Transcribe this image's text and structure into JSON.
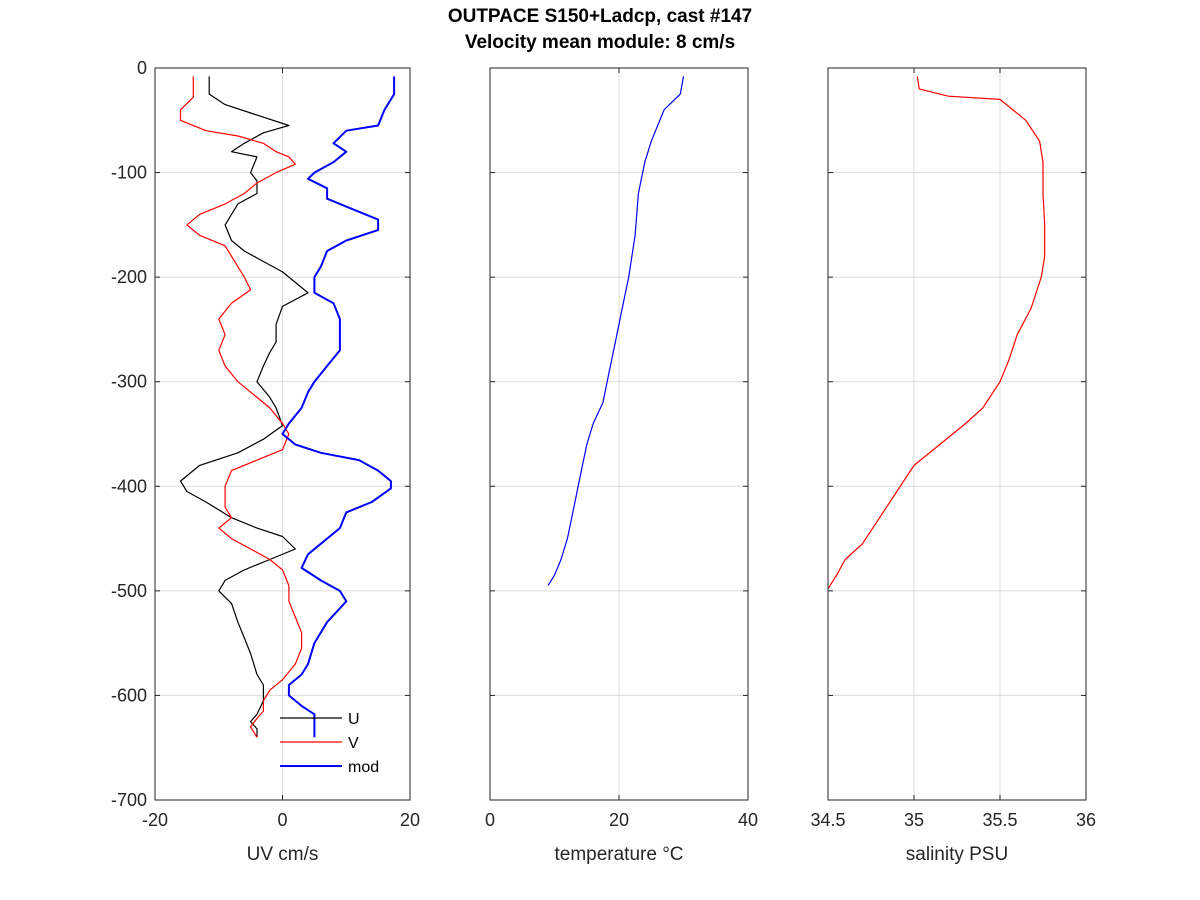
{
  "title_line1": "OUTPACE S150+Ladcp, cast #147",
  "title_line2": "Velocity mean module:  8 cm/s",
  "chart_data": [
    {
      "type": "line",
      "xlabel": "UV cm/s",
      "ylabel": "",
      "xlim": [
        -20,
        20
      ],
      "ylim": [
        -700,
        0
      ],
      "xticks": [
        -20,
        0,
        20
      ],
      "yticks": [
        0,
        -100,
        -200,
        -300,
        -400,
        -500,
        -600,
        -700
      ],
      "grid": true,
      "legend_position": "bottom-right",
      "series": [
        {
          "name": "U",
          "color": "#000000",
          "points": [
            [
              -11.5,
              -8
            ],
            [
              -11.5,
              -25
            ],
            [
              -9,
              -35
            ],
            [
              -4,
              -45
            ],
            [
              1,
              -55
            ],
            [
              -3,
              -62
            ],
            [
              -6,
              -72
            ],
            [
              -8,
              -80
            ],
            [
              -4,
              -85
            ],
            [
              -5,
              -100
            ],
            [
              -4,
              -108
            ],
            [
              -4,
              -120
            ],
            [
              -7,
              -130
            ],
            [
              -8,
              -140
            ],
            [
              -9,
              -150
            ],
            [
              -8,
              -165
            ],
            [
              -6,
              -175
            ],
            [
              -3,
              -185
            ],
            [
              0,
              -195
            ],
            [
              2,
              -205
            ],
            [
              4,
              -215
            ],
            [
              0,
              -228
            ],
            [
              -1,
              -245
            ],
            [
              -1,
              -262
            ],
            [
              -2,
              -272
            ],
            [
              -3,
              -285
            ],
            [
              -4,
              -300
            ],
            [
              -2,
              -315
            ],
            [
              -1,
              -325
            ],
            [
              0,
              -342
            ],
            [
              -3,
              -355
            ],
            [
              -7,
              -368
            ],
            [
              -13,
              -380
            ],
            [
              -16,
              -395
            ],
            [
              -15,
              -405
            ],
            [
              -12,
              -415
            ],
            [
              -8,
              -430
            ],
            [
              -4,
              -440
            ],
            [
              0,
              -448
            ],
            [
              2,
              -460
            ],
            [
              -2,
              -470
            ],
            [
              -6,
              -480
            ],
            [
              -9,
              -490
            ],
            [
              -10,
              -500
            ],
            [
              -8,
              -512
            ],
            [
              -7,
              -530
            ],
            [
              -6,
              -545
            ],
            [
              -5,
              -560
            ],
            [
              -4,
              -580
            ],
            [
              -3,
              -590
            ],
            [
              -3,
              -605
            ],
            [
              -4,
              -618
            ],
            [
              -5,
              -625
            ],
            [
              -4,
              -632
            ],
            [
              -4,
              -640
            ]
          ]
        },
        {
          "name": "V",
          "color": "#ff0000",
          "points": [
            [
              -14,
              -8
            ],
            [
              -14,
              -28
            ],
            [
              -16,
              -40
            ],
            [
              -16,
              -50
            ],
            [
              -12,
              -60
            ],
            [
              -7,
              -65
            ],
            [
              -3,
              -72
            ],
            [
              -1,
              -80
            ],
            [
              1,
              -85
            ],
            [
              2,
              -92
            ],
            [
              -1,
              -100
            ],
            [
              -4,
              -110
            ],
            [
              -6,
              -120
            ],
            [
              -9,
              -130
            ],
            [
              -13,
              -140
            ],
            [
              -15,
              -150
            ],
            [
              -13,
              -160
            ],
            [
              -9,
              -170
            ],
            [
              -7,
              -190
            ],
            [
              -6,
              -200
            ],
            [
              -5,
              -212
            ],
            [
              -8,
              -225
            ],
            [
              -10,
              -240
            ],
            [
              -9,
              -255
            ],
            [
              -10,
              -270
            ],
            [
              -9,
              -285
            ],
            [
              -7,
              -300
            ],
            [
              -4,
              -315
            ],
            [
              -2,
              -325
            ],
            [
              0,
              -340
            ],
            [
              1,
              -350
            ],
            [
              0,
              -365
            ],
            [
              -4,
              -375
            ],
            [
              -8,
              -385
            ],
            [
              -9,
              -400
            ],
            [
              -9,
              -420
            ],
            [
              -8,
              -430
            ],
            [
              -10,
              -440
            ],
            [
              -8,
              -450
            ],
            [
              -5,
              -460
            ],
            [
              -2,
              -470
            ],
            [
              0,
              -480
            ],
            [
              1,
              -495
            ],
            [
              1,
              -510
            ],
            [
              2,
              -525
            ],
            [
              3,
              -540
            ],
            [
              3,
              -555
            ],
            [
              2,
              -570
            ],
            [
              0,
              -585
            ],
            [
              -2,
              -595
            ],
            [
              -3,
              -605
            ],
            [
              -3,
              -615
            ],
            [
              -4,
              -622
            ],
            [
              -5,
              -630
            ],
            [
              -4,
              -640
            ]
          ]
        },
        {
          "name": "mod",
          "color": "#0000ff",
          "points": [
            [
              17.5,
              -8
            ],
            [
              17.5,
              -25
            ],
            [
              16,
              -40
            ],
            [
              15,
              -55
            ],
            [
              10,
              -60
            ],
            [
              8,
              -72
            ],
            [
              10,
              -80
            ],
            [
              8,
              -90
            ],
            [
              5,
              -100
            ],
            [
              4,
              -106
            ],
            [
              7,
              -115
            ],
            [
              7,
              -125
            ],
            [
              11,
              -135
            ],
            [
              15,
              -145
            ],
            [
              15,
              -155
            ],
            [
              10,
              -165
            ],
            [
              7,
              -175
            ],
            [
              6,
              -190
            ],
            [
              5,
              -200
            ],
            [
              5,
              -215
            ],
            [
              8,
              -225
            ],
            [
              9,
              -240
            ],
            [
              9,
              -255
            ],
            [
              9,
              -270
            ],
            [
              7,
              -285
            ],
            [
              5,
              -300
            ],
            [
              4,
              -310
            ],
            [
              3,
              -325
            ],
            [
              1,
              -340
            ],
            [
              0,
              -350
            ],
            [
              2,
              -360
            ],
            [
              6,
              -368
            ],
            [
              12,
              -375
            ],
            [
              15,
              -385
            ],
            [
              17,
              -395
            ],
            [
              17,
              -402
            ],
            [
              14,
              -415
            ],
            [
              10,
              -425
            ],
            [
              9,
              -440
            ],
            [
              6,
              -455
            ],
            [
              4,
              -465
            ],
            [
              3,
              -478
            ],
            [
              6,
              -490
            ],
            [
              9,
              -500
            ],
            [
              10,
              -510
            ],
            [
              7,
              -530
            ],
            [
              5,
              -550
            ],
            [
              4,
              -570
            ],
            [
              3,
              -580
            ],
            [
              1,
              -590
            ],
            [
              1,
              -600
            ],
            [
              3,
              -610
            ],
            [
              5,
              -618
            ],
            [
              5,
              -630
            ],
            [
              5,
              -640
            ]
          ]
        }
      ],
      "legend": [
        {
          "label": "U",
          "color": "#000000"
        },
        {
          "label": "V",
          "color": "#ff0000"
        },
        {
          "label": "mod",
          "color": "#0000ff"
        }
      ]
    },
    {
      "type": "line",
      "xlabel": "temperature °C",
      "ylabel": "",
      "xlim": [
        0,
        40
      ],
      "ylim": [
        -700,
        0
      ],
      "xticks": [
        0,
        20,
        40
      ],
      "yticks": [
        0,
        -100,
        -200,
        -300,
        -400,
        -500,
        -600,
        -700
      ],
      "grid": true,
      "series": [
        {
          "name": "",
          "color": "#0000ff",
          "points": [
            [
              30,
              -8
            ],
            [
              29.5,
              -25
            ],
            [
              27,
              -40
            ],
            [
              26,
              -55
            ],
            [
              25,
              -70
            ],
            [
              24,
              -90
            ],
            [
              23,
              -120
            ],
            [
              22.5,
              -160
            ],
            [
              21.5,
              -200
            ],
            [
              20.5,
              -230
            ],
            [
              19.5,
              -260
            ],
            [
              18.5,
              -290
            ],
            [
              17.5,
              -320
            ],
            [
              16,
              -340
            ],
            [
              15,
              -360
            ],
            [
              14,
              -390
            ],
            [
              13,
              -420
            ],
            [
              12,
              -450
            ],
            [
              11,
              -470
            ],
            [
              10,
              -485
            ],
            [
              9,
              -495
            ]
          ]
        }
      ]
    },
    {
      "type": "line",
      "xlabel": "salinity PSU",
      "ylabel": "",
      "xlim": [
        34.5,
        36
      ],
      "ylim": [
        -700,
        0
      ],
      "xticks": [
        34.5,
        35,
        35.5,
        36
      ],
      "yticks": [
        0,
        -100,
        -200,
        -300,
        -400,
        -500,
        -600,
        -700
      ],
      "grid": true,
      "series": [
        {
          "name": "",
          "color": "#ff0000",
          "points": [
            [
              35.02,
              -8
            ],
            [
              35.03,
              -20
            ],
            [
              35.2,
              -27
            ],
            [
              35.5,
              -30
            ],
            [
              35.65,
              -50
            ],
            [
              35.73,
              -70
            ],
            [
              35.75,
              -90
            ],
            [
              35.75,
              -120
            ],
            [
              35.76,
              -150
            ],
            [
              35.76,
              -180
            ],
            [
              35.74,
              -200
            ],
            [
              35.68,
              -230
            ],
            [
              35.6,
              -255
            ],
            [
              35.55,
              -280
            ],
            [
              35.5,
              -300
            ],
            [
              35.4,
              -325
            ],
            [
              35.3,
              -340
            ],
            [
              35.15,
              -360
            ],
            [
              35.0,
              -380
            ],
            [
              34.9,
              -405
            ],
            [
              34.8,
              -430
            ],
            [
              34.7,
              -455
            ],
            [
              34.6,
              -470
            ],
            [
              34.55,
              -485
            ],
            [
              34.5,
              -498
            ]
          ]
        }
      ]
    }
  ]
}
